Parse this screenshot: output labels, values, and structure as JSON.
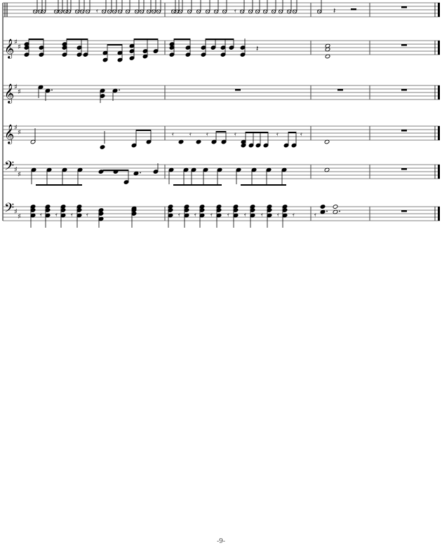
{
  "page": {
    "number": "-9-"
  },
  "score": {
    "staves": [
      "percussion",
      "treble",
      "treble",
      "treble",
      "bass",
      "bass"
    ],
    "key_signature": "D major (2 sharps)",
    "measures_visible": 4
  }
}
